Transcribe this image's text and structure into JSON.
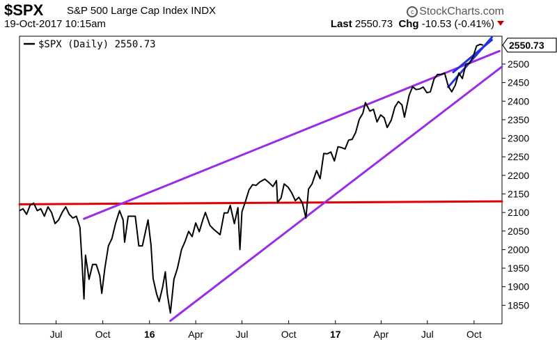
{
  "header": {
    "symbol": "$SPX",
    "index_name": "S&P 500 Large Cap Index",
    "exchange": "INDX",
    "brand": "StockCharts.com",
    "brand_icon": "copyright-icon",
    "datetime": "19-Oct-2017 10:15am",
    "last_label": "Last",
    "last_value": "2550.73",
    "chg_label": "Chg",
    "chg_value": "-10.53 (-0.41%)",
    "chg_direction_icon": "down-arrow-icon",
    "chg_color": "#c00000"
  },
  "legend": {
    "text": "$SPX (Daily) 2550.73"
  },
  "chart_data": {
    "type": "line",
    "ylim": [
      1800,
      2575
    ],
    "y_ticks": [
      1850,
      1900,
      1950,
      2000,
      2050,
      2100,
      2150,
      2200,
      2250,
      2300,
      2350,
      2400,
      2450,
      2500
    ],
    "x_ticks": [
      {
        "label": "Jul",
        "date": "2015-07-01",
        "bold": false
      },
      {
        "label": "Oct",
        "date": "2015-10-01",
        "bold": false
      },
      {
        "label": "16",
        "date": "2016-01-01",
        "bold": true
      },
      {
        "label": "Apr",
        "date": "2016-04-01",
        "bold": false
      },
      {
        "label": "Jul",
        "date": "2016-07-01",
        "bold": false
      },
      {
        "label": "Oct",
        "date": "2016-10-01",
        "bold": false
      },
      {
        "label": "17",
        "date": "2017-01-01",
        "bold": true
      },
      {
        "label": "Apr",
        "date": "2017-04-01",
        "bold": false
      },
      {
        "label": "Jul",
        "date": "2017-07-01",
        "bold": false
      },
      {
        "label": "Oct",
        "date": "2017-10-01",
        "bold": false
      }
    ],
    "xlim": [
      "2015-04-20",
      "2017-11-25"
    ],
    "last_value_label": "2550.73",
    "grid": false,
    "legend_position": "top-left",
    "series": [
      {
        "color": "#000000",
        "points": [
          [
            "2015-04-20",
            2105
          ],
          [
            "2015-04-27",
            2110
          ],
          [
            "2015-05-04",
            2095
          ],
          [
            "2015-05-11",
            2120
          ],
          [
            "2015-05-18",
            2125
          ],
          [
            "2015-05-25",
            2105
          ],
          [
            "2015-06-01",
            2110
          ],
          [
            "2015-06-08",
            2090
          ],
          [
            "2015-06-15",
            2115
          ],
          [
            "2015-06-22",
            2100
          ],
          [
            "2015-06-29",
            2070
          ],
          [
            "2015-07-06",
            2080
          ],
          [
            "2015-07-13",
            2100
          ],
          [
            "2015-07-20",
            2115
          ],
          [
            "2015-07-27",
            2095
          ],
          [
            "2015-08-03",
            2085
          ],
          [
            "2015-08-10",
            2090
          ],
          [
            "2015-08-17",
            2060
          ],
          [
            "2015-08-21",
            1970
          ],
          [
            "2015-08-25",
            1867
          ],
          [
            "2015-08-28",
            1985
          ],
          [
            "2015-09-04",
            1920
          ],
          [
            "2015-09-11",
            1960
          ],
          [
            "2015-09-18",
            1960
          ],
          [
            "2015-09-25",
            1930
          ],
          [
            "2015-09-29",
            1882
          ],
          [
            "2015-10-05",
            1950
          ],
          [
            "2015-10-12",
            2010
          ],
          [
            "2015-10-19",
            2030
          ],
          [
            "2015-10-26",
            2070
          ],
          [
            "2015-11-03",
            2105
          ],
          [
            "2015-11-10",
            2080
          ],
          [
            "2015-11-13",
            2020
          ],
          [
            "2015-11-20",
            2090
          ],
          [
            "2015-11-27",
            2090
          ],
          [
            "2015-12-04",
            2090
          ],
          [
            "2015-12-11",
            2010
          ],
          [
            "2015-12-18",
            2010
          ],
          [
            "2015-12-29",
            2080
          ],
          [
            "2016-01-04",
            2012
          ],
          [
            "2016-01-08",
            1922
          ],
          [
            "2016-01-15",
            1880
          ],
          [
            "2016-01-20",
            1860
          ],
          [
            "2016-01-27",
            1900
          ],
          [
            "2016-02-01",
            1940
          ],
          [
            "2016-02-05",
            1880
          ],
          [
            "2016-02-11",
            1829
          ],
          [
            "2016-02-18",
            1920
          ],
          [
            "2016-02-25",
            1950
          ],
          [
            "2016-03-04",
            2000
          ],
          [
            "2016-03-11",
            2022
          ],
          [
            "2016-03-18",
            2049
          ],
          [
            "2016-03-25",
            2035
          ],
          [
            "2016-04-01",
            2072
          ],
          [
            "2016-04-08",
            2048
          ],
          [
            "2016-04-15",
            2080
          ],
          [
            "2016-04-20",
            2100
          ],
          [
            "2016-04-29",
            2065
          ],
          [
            "2016-05-06",
            2055
          ],
          [
            "2016-05-13",
            2047
          ],
          [
            "2016-05-19",
            2040
          ],
          [
            "2016-05-27",
            2099
          ],
          [
            "2016-06-03",
            2099
          ],
          [
            "2016-06-08",
            2119
          ],
          [
            "2016-06-16",
            2070
          ],
          [
            "2016-06-23",
            2113
          ],
          [
            "2016-06-27",
            2000
          ],
          [
            "2016-07-01",
            2102
          ],
          [
            "2016-07-08",
            2130
          ],
          [
            "2016-07-15",
            2161
          ],
          [
            "2016-07-22",
            2175
          ],
          [
            "2016-07-29",
            2173
          ],
          [
            "2016-08-05",
            2182
          ],
          [
            "2016-08-15",
            2190
          ],
          [
            "2016-08-22",
            2182
          ],
          [
            "2016-08-31",
            2170
          ],
          [
            "2016-09-07",
            2186
          ],
          [
            "2016-09-09",
            2127
          ],
          [
            "2016-09-16",
            2139
          ],
          [
            "2016-09-22",
            2177
          ],
          [
            "2016-09-30",
            2168
          ],
          [
            "2016-10-07",
            2153
          ],
          [
            "2016-10-14",
            2132
          ],
          [
            "2016-10-21",
            2141
          ],
          [
            "2016-10-28",
            2126
          ],
          [
            "2016-11-04",
            2085
          ],
          [
            "2016-11-09",
            2163
          ],
          [
            "2016-11-16",
            2177
          ],
          [
            "2016-11-25",
            2213
          ],
          [
            "2016-12-02",
            2191
          ],
          [
            "2016-12-09",
            2259
          ],
          [
            "2016-12-16",
            2258
          ],
          [
            "2016-12-23",
            2263
          ],
          [
            "2016-12-30",
            2239
          ],
          [
            "2017-01-06",
            2277
          ],
          [
            "2017-01-13",
            2275
          ],
          [
            "2017-01-20",
            2271
          ],
          [
            "2017-01-27",
            2295
          ],
          [
            "2017-02-03",
            2297
          ],
          [
            "2017-02-10",
            2316
          ],
          [
            "2017-02-17",
            2351
          ],
          [
            "2017-02-24",
            2367
          ],
          [
            "2017-03-01",
            2396
          ],
          [
            "2017-03-10",
            2373
          ],
          [
            "2017-03-17",
            2378
          ],
          [
            "2017-03-24",
            2344
          ],
          [
            "2017-03-31",
            2363
          ],
          [
            "2017-04-07",
            2355
          ],
          [
            "2017-04-13",
            2329
          ],
          [
            "2017-04-21",
            2349
          ],
          [
            "2017-04-28",
            2384
          ],
          [
            "2017-05-05",
            2399
          ],
          [
            "2017-05-12",
            2390
          ],
          [
            "2017-05-17",
            2357
          ],
          [
            "2017-05-26",
            2415
          ],
          [
            "2017-06-02",
            2439
          ],
          [
            "2017-06-09",
            2431
          ],
          [
            "2017-06-16",
            2433
          ],
          [
            "2017-06-23",
            2438
          ],
          [
            "2017-06-30",
            2423
          ],
          [
            "2017-07-07",
            2425
          ],
          [
            "2017-07-14",
            2459
          ],
          [
            "2017-07-21",
            2472
          ],
          [
            "2017-07-28",
            2472
          ],
          [
            "2017-08-04",
            2476
          ],
          [
            "2017-08-11",
            2441
          ],
          [
            "2017-08-18",
            2425
          ],
          [
            "2017-08-25",
            2443
          ],
          [
            "2017-09-01",
            2476
          ],
          [
            "2017-09-08",
            2461
          ],
          [
            "2017-09-15",
            2500
          ],
          [
            "2017-09-22",
            2502
          ],
          [
            "2017-09-29",
            2519
          ],
          [
            "2017-10-06",
            2549
          ],
          [
            "2017-10-13",
            2553
          ],
          [
            "2017-10-19",
            2551
          ]
        ]
      }
    ],
    "trendlines": [
      {
        "color": "#e00000",
        "from": [
          "2015-04-20",
          2122
        ],
        "to": [
          "2017-11-25",
          2130
        ]
      },
      {
        "color": "#9a2be8",
        "from": [
          "2015-08-25",
          2083
        ],
        "to": [
          "2017-11-20",
          2535
        ]
      },
      {
        "color": "#9a2be8",
        "from": [
          "2016-02-11",
          1808
        ],
        "to": [
          "2017-11-25",
          2493
        ]
      },
      {
        "color": "#2233dd",
        "from": [
          "2017-08-11",
          2438
        ],
        "to": [
          "2017-11-05",
          2572
        ]
      },
      {
        "color": "#2233dd",
        "from": [
          "2017-08-21",
          2478
        ],
        "to": [
          "2017-11-05",
          2565
        ]
      }
    ]
  }
}
